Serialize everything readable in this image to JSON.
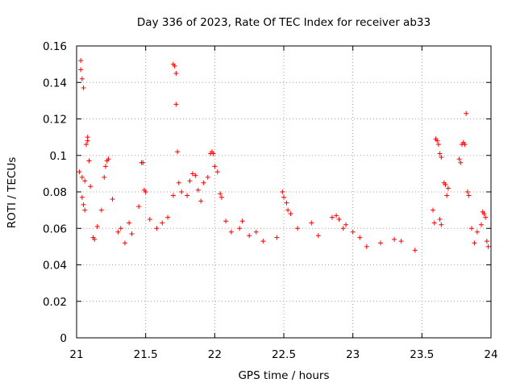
{
  "chart_data": {
    "type": "scatter",
    "title": "Day 336 of 2023, Rate Of TEC Index for receiver ab33",
    "xlabel": "GPS time / hours",
    "ylabel": "ROTI / TECUs",
    "xlim": [
      21,
      24
    ],
    "ylim": [
      0,
      0.16
    ],
    "xticks": [
      21,
      21.5,
      22,
      22.5,
      23,
      23.5,
      24
    ],
    "xtick_labels": [
      "21",
      "21.5",
      "22",
      "22.5",
      "23",
      "23.5",
      "24"
    ],
    "yticks": [
      0,
      0.02,
      0.04,
      0.06,
      0.08,
      0.1,
      0.12,
      0.14,
      0.16
    ],
    "ytick_labels": [
      "0",
      "0.02",
      "0.04",
      "0.06",
      "0.08",
      "0.1",
      "0.12",
      "0.14",
      "0.16"
    ],
    "grid": true,
    "marker": "+",
    "color": "#ff0000",
    "series": [
      {
        "name": "ROTI",
        "points": [
          [
            21.03,
            0.152
          ],
          [
            21.03,
            0.147
          ],
          [
            21.04,
            0.142
          ],
          [
            21.05,
            0.137
          ],
          [
            21.07,
            0.106
          ],
          [
            21.08,
            0.108
          ],
          [
            21.08,
            0.11
          ],
          [
            21.02,
            0.091
          ],
          [
            21.04,
            0.088
          ],
          [
            21.06,
            0.086
          ],
          [
            21.09,
            0.097
          ],
          [
            21.1,
            0.083
          ],
          [
            21.04,
            0.077
          ],
          [
            21.05,
            0.073
          ],
          [
            21.06,
            0.07
          ],
          [
            21.12,
            0.055
          ],
          [
            21.13,
            0.054
          ],
          [
            21.15,
            0.061
          ],
          [
            21.18,
            0.07
          ],
          [
            21.2,
            0.088
          ],
          [
            21.21,
            0.094
          ],
          [
            21.22,
            0.097
          ],
          [
            21.23,
            0.098
          ],
          [
            21.26,
            0.076
          ],
          [
            21.3,
            0.058
          ],
          [
            21.32,
            0.06
          ],
          [
            21.35,
            0.052
          ],
          [
            21.38,
            0.063
          ],
          [
            21.4,
            0.057
          ],
          [
            21.45,
            0.072
          ],
          [
            21.47,
            0.096
          ],
          [
            21.48,
            0.096
          ],
          [
            21.49,
            0.081
          ],
          [
            21.5,
            0.08
          ],
          [
            21.53,
            0.065
          ],
          [
            21.58,
            0.06
          ],
          [
            21.62,
            0.063
          ],
          [
            21.66,
            0.066
          ],
          [
            21.7,
            0.15
          ],
          [
            21.71,
            0.149
          ],
          [
            21.72,
            0.145
          ],
          [
            21.72,
            0.128
          ],
          [
            21.73,
            0.102
          ],
          [
            21.7,
            0.078
          ],
          [
            21.74,
            0.085
          ],
          [
            21.76,
            0.08
          ],
          [
            21.8,
            0.078
          ],
          [
            21.82,
            0.086
          ],
          [
            21.84,
            0.09
          ],
          [
            21.86,
            0.089
          ],
          [
            21.88,
            0.081
          ],
          [
            21.9,
            0.075
          ],
          [
            21.92,
            0.085
          ],
          [
            21.95,
            0.088
          ],
          [
            21.97,
            0.101
          ],
          [
            21.98,
            0.102
          ],
          [
            21.99,
            0.101
          ],
          [
            22.0,
            0.094
          ],
          [
            22.02,
            0.091
          ],
          [
            22.04,
            0.079
          ],
          [
            22.05,
            0.077
          ],
          [
            22.08,
            0.064
          ],
          [
            22.12,
            0.058
          ],
          [
            22.18,
            0.06
          ],
          [
            22.2,
            0.064
          ],
          [
            22.25,
            0.056
          ],
          [
            22.3,
            0.058
          ],
          [
            22.35,
            0.053
          ],
          [
            22.45,
            0.055
          ],
          [
            22.49,
            0.08
          ],
          [
            22.5,
            0.077
          ],
          [
            22.52,
            0.074
          ],
          [
            22.53,
            0.07
          ],
          [
            22.55,
            0.068
          ],
          [
            22.6,
            0.06
          ],
          [
            22.7,
            0.063
          ],
          [
            22.75,
            0.056
          ],
          [
            22.85,
            0.066
          ],
          [
            22.88,
            0.067
          ],
          [
            22.9,
            0.065
          ],
          [
            22.93,
            0.06
          ],
          [
            22.95,
            0.062
          ],
          [
            23.0,
            0.058
          ],
          [
            23.05,
            0.055
          ],
          [
            23.1,
            0.05
          ],
          [
            23.2,
            0.052
          ],
          [
            23.3,
            0.054
          ],
          [
            23.35,
            0.053
          ],
          [
            23.45,
            0.048
          ],
          [
            23.58,
            0.07
          ],
          [
            23.59,
            0.063
          ],
          [
            23.6,
            0.109
          ],
          [
            23.61,
            0.108
          ],
          [
            23.62,
            0.106
          ],
          [
            23.63,
            0.101
          ],
          [
            23.64,
            0.099
          ],
          [
            23.66,
            0.085
          ],
          [
            23.67,
            0.084
          ],
          [
            23.68,
            0.078
          ],
          [
            23.69,
            0.082
          ],
          [
            23.64,
            0.062
          ],
          [
            23.63,
            0.065
          ],
          [
            23.77,
            0.098
          ],
          [
            23.78,
            0.096
          ],
          [
            23.79,
            0.106
          ],
          [
            23.8,
            0.107
          ],
          [
            23.81,
            0.106
          ],
          [
            23.82,
            0.123
          ],
          [
            23.83,
            0.08
          ],
          [
            23.84,
            0.078
          ],
          [
            23.86,
            0.06
          ],
          [
            23.88,
            0.052
          ],
          [
            23.9,
            0.058
          ],
          [
            23.93,
            0.062
          ],
          [
            23.94,
            0.069
          ],
          [
            23.95,
            0.068
          ],
          [
            23.96,
            0.066
          ],
          [
            23.97,
            0.053
          ],
          [
            23.98,
            0.05
          ]
        ]
      }
    ]
  }
}
